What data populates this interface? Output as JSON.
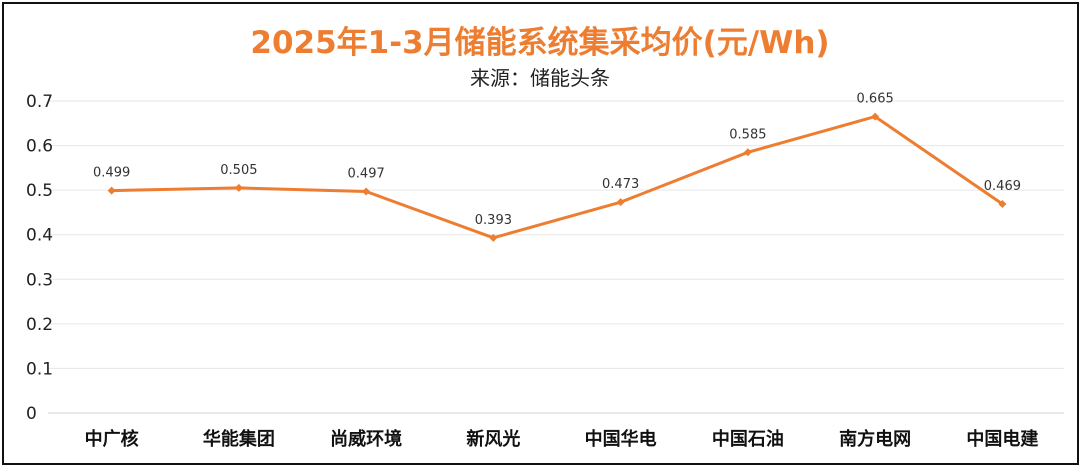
{
  "chart_data": {
    "type": "line",
    "title": "2025年1-3月储能系统集采均价(元/Wh)",
    "subtitle": "来源：储能头条",
    "xlabel": "",
    "ylabel": "",
    "categories": [
      "中广核",
      "华能集团",
      "尚威环境",
      "新风光",
      "中国华电",
      "中国石油",
      "南方电网",
      "中国电建"
    ],
    "series": [
      {
        "values": [
          0.499,
          0.505,
          0.497,
          0.393,
          0.473,
          0.585,
          0.665,
          0.469
        ]
      }
    ],
    "data_labels": [
      "0.499",
      "0.505",
      "0.497",
      "0.393",
      "0.473",
      "0.585",
      "0.665",
      "0.469"
    ],
    "ylim": [
      0,
      0.7
    ],
    "yticks": [
      0,
      0.1,
      0.2,
      0.3,
      0.4,
      0.5,
      0.6,
      0.7
    ],
    "ytick_labels": [
      "0",
      "0.1",
      "0.2",
      "0.3",
      "0.4",
      "0.5",
      "0.6",
      "0.7"
    ],
    "grid": true,
    "legend": "none",
    "colors": {
      "line": "#ED7D31",
      "title": "#ED7D31",
      "grid": "#E6E6E6"
    }
  }
}
